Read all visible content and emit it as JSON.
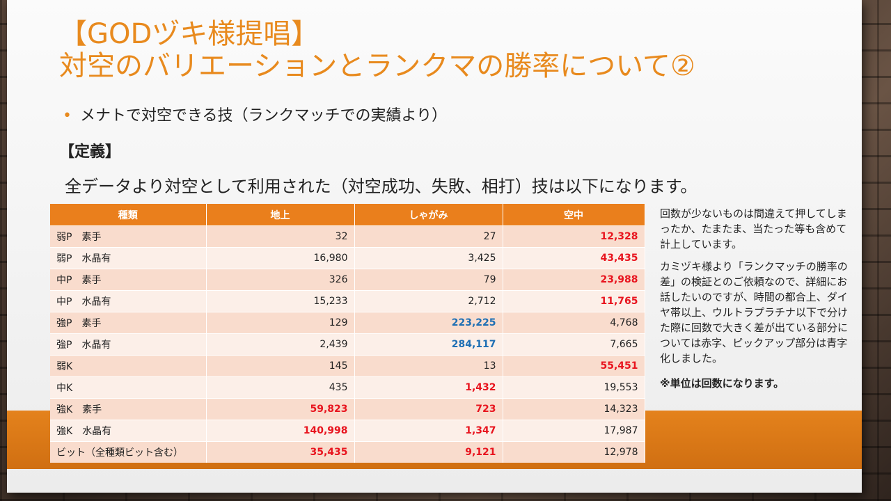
{
  "title_line1": "【GODヅキ様提唱】",
  "title_line2": "対空のバリエーションとランクマの勝率について②",
  "bullet": "メナトで対空できる技（ランクマッチでの実績より）",
  "section_label": "【定義】",
  "intro": "全データより対空として利用された（対空成功、失敗、相打）技は以下になります。",
  "table": {
    "headers": [
      "種類",
      "地上",
      "しゃがみ",
      "空中"
    ],
    "rows": [
      {
        "name": "弱P　素手",
        "v": [
          "32",
          "27",
          "12,328"
        ],
        "s": [
          "",
          "",
          "red"
        ]
      },
      {
        "name": "弱P　水晶有",
        "v": [
          "16,980",
          "3,425",
          "43,435"
        ],
        "s": [
          "",
          "",
          "red"
        ]
      },
      {
        "name": "中P　素手",
        "v": [
          "326",
          "79",
          "23,988"
        ],
        "s": [
          "",
          "",
          "red"
        ]
      },
      {
        "name": "中P　水晶有",
        "v": [
          "15,233",
          "2,712",
          "11,765"
        ],
        "s": [
          "",
          "",
          "red"
        ]
      },
      {
        "name": "強P　素手",
        "v": [
          "129",
          "223,225",
          "4,768"
        ],
        "s": [
          "",
          "blue",
          ""
        ]
      },
      {
        "name": "強P　水晶有",
        "v": [
          "2,439",
          "284,117",
          "7,665"
        ],
        "s": [
          "",
          "blue",
          ""
        ]
      },
      {
        "name": "弱K",
        "v": [
          "145",
          "13",
          "55,451"
        ],
        "s": [
          "",
          "",
          "red"
        ]
      },
      {
        "name": "中K",
        "v": [
          "435",
          "1,432",
          "19,553"
        ],
        "s": [
          "",
          "red",
          ""
        ]
      },
      {
        "name": "強K　素手",
        "v": [
          "59,823",
          "723",
          "14,323"
        ],
        "s": [
          "red",
          "red",
          ""
        ]
      },
      {
        "name": "強K　水晶有",
        "v": [
          "140,998",
          "1,347",
          "17,987"
        ],
        "s": [
          "red",
          "red",
          ""
        ]
      },
      {
        "name": "ビット（全種類ビット含む）",
        "v": [
          "35,435",
          "9,121",
          "12,978"
        ],
        "s": [
          "red",
          "red",
          ""
        ]
      }
    ]
  },
  "side": {
    "p1": "回数が少ないものは間違えて押してしまったか、たまたま、当たった等も含めて計上しています。",
    "p2": "カミヅキ様より「ランクマッチの勝率の差」の検証とのご依頼なので、詳細にお話したいのですが、時間の都合上、ダイヤ帯以上、ウルトラプラチナ以下で分けた際に回数で大きく差が出ている部分については赤字、ピックアップ部分は青字化しました。",
    "note": "※単位は回数になります。"
  },
  "colors": {
    "accent": "#e88a1e",
    "header": "#ea7f1c",
    "red": "#e8141e",
    "blue": "#1e6fb4"
  }
}
